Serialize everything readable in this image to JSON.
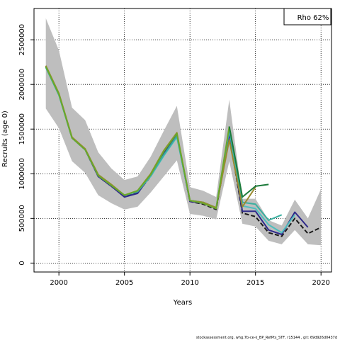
{
  "chart_data": {
    "type": "line",
    "xlabel": "Years",
    "ylabel": "Recruits (age 0)",
    "xlim": [
      1998.1,
      2020.8
    ],
    "ylim": [
      -100000,
      2850000
    ],
    "xticks": [
      2000,
      2005,
      2010,
      2015,
      2020
    ],
    "yticks": [
      0,
      500000,
      1000000,
      1500000,
      2000000,
      2500000
    ],
    "grid": "dotted",
    "annotation": "Rho 62%",
    "band": {
      "x": [
        1999,
        2000,
        2001,
        2002,
        2003,
        2004,
        2005,
        2006,
        2007,
        2008,
        2009,
        2010,
        2011,
        2012,
        2013,
        2014,
        2015,
        2016,
        2017,
        2018,
        2019,
        2020
      ],
      "upper": [
        2740000,
        2380000,
        1740000,
        1600000,
        1240000,
        1060000,
        930000,
        970000,
        1190000,
        1480000,
        1760000,
        850000,
        810000,
        740000,
        1830000,
        720000,
        720000,
        480000,
        420000,
        710000,
        500000,
        830000
      ],
      "lower": [
        1730000,
        1510000,
        1140000,
        1010000,
        760000,
        670000,
        600000,
        630000,
        790000,
        970000,
        1150000,
        550000,
        530000,
        490000,
        1140000,
        440000,
        410000,
        250000,
        210000,
        370000,
        210000,
        200000
      ]
    },
    "series": [
      {
        "color": "#1a1a1a",
        "dashed": true,
        "x": [
          1999,
          2000,
          2001,
          2002,
          2003,
          2004,
          2005,
          2006,
          2007,
          2008,
          2009,
          2010,
          2011,
          2012,
          2013,
          2014,
          2015,
          2016,
          2017,
          2018,
          2019,
          2020
        ],
        "y": [
          2200000,
          1890000,
          1400000,
          1270000,
          970000,
          860000,
          750000,
          790000,
          970000,
          1220000,
          1430000,
          690000,
          660000,
          600000,
          1430000,
          560000,
          520000,
          340000,
          300000,
          500000,
          330000,
          400000
        ]
      },
      {
        "color": "#2f2a8a",
        "x": [
          1999,
          2000,
          2001,
          2002,
          2003,
          2004,
          2005,
          2006,
          2007,
          2008,
          2009,
          2010,
          2011,
          2012,
          2013,
          2014,
          2015,
          2016,
          2017,
          2018,
          2019
        ],
        "y": [
          2200000,
          1890000,
          1400000,
          1270000,
          970000,
          860000,
          740000,
          780000,
          980000,
          1230000,
          1440000,
          690000,
          670000,
          610000,
          1450000,
          580000,
          580000,
          370000,
          320000,
          570000,
          400000
        ]
      },
      {
        "color": "#4dbfbf",
        "x": [
          1999,
          2000,
          2001,
          2002,
          2003,
          2004,
          2005,
          2006,
          2007,
          2008,
          2009,
          2010,
          2011,
          2012,
          2013,
          2014,
          2015,
          2016,
          2017,
          2018
        ],
        "y": [
          2190000,
          1880000,
          1400000,
          1270000,
          980000,
          870000,
          760000,
          800000,
          970000,
          1200000,
          1410000,
          700000,
          680000,
          620000,
          1490000,
          640000,
          610000,
          430000,
          340000,
          540000
        ]
      },
      {
        "color": "#3ab0a0",
        "x": [
          1999,
          2000,
          2001,
          2002,
          2003,
          2004,
          2005,
          2006,
          2007,
          2008,
          2009,
          2010,
          2011,
          2012,
          2013,
          2014,
          2015,
          2016,
          2017
        ],
        "y": [
          2190000,
          1880000,
          1400000,
          1270000,
          980000,
          870000,
          760000,
          800000,
          980000,
          1210000,
          1420000,
          700000,
          680000,
          620000,
          1500000,
          680000,
          660000,
          480000,
          540000
        ]
      },
      {
        "color": "#9a8a30",
        "x": [
          1999,
          2000,
          2001,
          2002,
          2003,
          2004,
          2005,
          2006,
          2007,
          2008,
          2009,
          2010,
          2011,
          2012,
          2013,
          2014,
          2015
        ],
        "y": [
          2210000,
          1900000,
          1410000,
          1280000,
          990000,
          880000,
          760000,
          810000,
          1000000,
          1260000,
          1460000,
          700000,
          680000,
          620000,
          1380000,
          630000,
          850000
        ]
      },
      {
        "color": "#6aa82a",
        "x": [
          1999,
          2000,
          2001,
          2002,
          2003,
          2004,
          2005,
          2006,
          2007,
          2008,
          2009,
          2010,
          2011,
          2012,
          2013
        ],
        "y": [
          2200000,
          1890000,
          1400000,
          1270000,
          980000,
          870000,
          760000,
          810000,
          990000,
          1250000,
          1450000,
          700000,
          670000,
          610000,
          1530000
        ]
      },
      {
        "color": "#1b7a3a",
        "x": [
          2013,
          2014,
          2015,
          2016
        ],
        "y": [
          1530000,
          740000,
          860000,
          880000
        ]
      }
    ]
  },
  "footer": "stockassessment.org, whg.7b-ce-k_BP_RefPts_STF, r15144 , git: 69d926d0437d"
}
